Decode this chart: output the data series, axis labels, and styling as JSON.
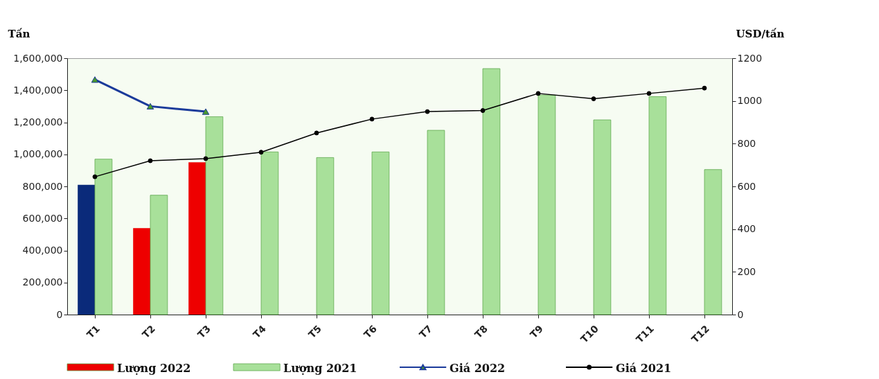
{
  "chart_data": {
    "type": "bar",
    "ylabel": "Tấn",
    "y2label": "USD/tấn",
    "categories": [
      "T1",
      "T2",
      "T3",
      "T4",
      "T5",
      "T6",
      "T7",
      "T8",
      "T9",
      "T10",
      "T11",
      "T12"
    ],
    "series": [
      {
        "name": "Lượng 2022",
        "color": "#ee0000",
        "colors": [
          "#0a2a7a",
          "#ee0000",
          "#ee0000",
          null,
          null,
          null,
          null,
          null,
          null,
          null,
          null,
          null
        ],
        "values": [
          810000,
          540000,
          950000,
          null,
          null,
          null,
          null,
          null,
          null,
          null,
          null,
          null
        ]
      },
      {
        "name": "Lượng 2021",
        "color": "#a8e09a",
        "values": [
          970000,
          745000,
          1235000,
          1015000,
          980000,
          1015000,
          1150000,
          1535000,
          1370000,
          1215000,
          1360000,
          905000
        ]
      },
      {
        "name": "Giá 2022",
        "type": "line",
        "axis": "y2",
        "color": "#1a3a9a",
        "marker": "triangle",
        "values": [
          1100,
          975,
          950,
          null,
          null,
          null,
          null,
          null,
          null,
          null,
          null,
          null
        ]
      },
      {
        "name": "Giá 2021",
        "type": "line",
        "axis": "y2",
        "color": "#000000",
        "marker": "circle",
        "values": [
          645,
          720,
          730,
          760,
          850,
          915,
          950,
          955,
          1035,
          1010,
          1035,
          1060
        ]
      }
    ],
    "ylim": [
      0,
      1600000
    ],
    "yticks": [
      {
        "value": 0,
        "label": "0"
      },
      {
        "value": 200000,
        "label": "200,000"
      },
      {
        "value": 400000,
        "label": "400,000"
      },
      {
        "value": 600000,
        "label": "600,000"
      },
      {
        "value": 800000,
        "label": "800,000"
      },
      {
        "value": 1000000,
        "label": "1,000,000"
      },
      {
        "value": 1200000,
        "label": "1,200,000"
      },
      {
        "value": 1400000,
        "label": "1,400,000"
      },
      {
        "value": 1600000,
        "label": "1,600,000"
      }
    ],
    "y2lim": [
      0,
      1200
    ],
    "y2ticks": [
      0,
      200,
      400,
      600,
      800,
      1000,
      1200
    ],
    "grid": false,
    "legend": "bottom"
  }
}
